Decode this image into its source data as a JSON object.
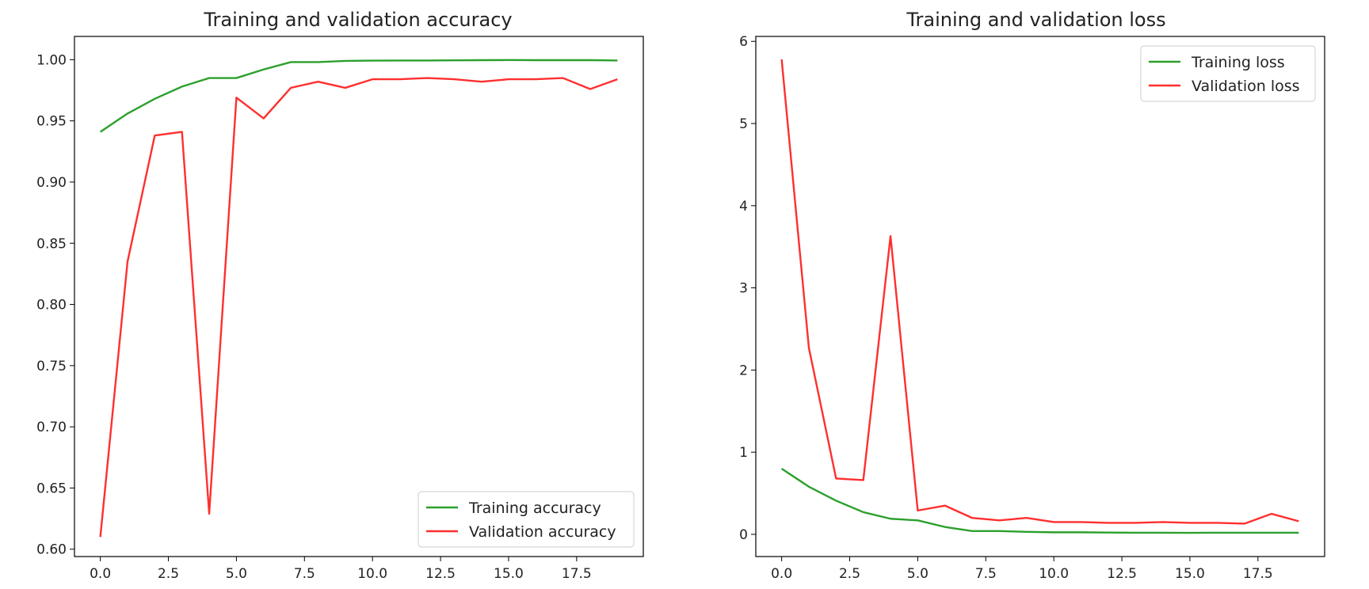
{
  "chart_data": [
    {
      "type": "line",
      "title": "Training and validation accuracy",
      "xlabel": "",
      "ylabel": "",
      "xlim": [
        -0.95,
        19.95
      ],
      "ylim": [
        0.594,
        1.019
      ],
      "xticks": [
        0.0,
        2.5,
        5.0,
        7.5,
        10.0,
        12.5,
        15.0,
        17.5
      ],
      "xtick_labels": [
        "0.0",
        "2.5",
        "5.0",
        "7.5",
        "10.0",
        "12.5",
        "15.0",
        "17.5"
      ],
      "yticks": [
        0.6,
        0.65,
        0.7,
        0.75,
        0.8,
        0.85,
        0.9,
        0.95,
        1.0
      ],
      "ytick_labels": [
        "0.60",
        "0.65",
        "0.70",
        "0.75",
        "0.80",
        "0.85",
        "0.90",
        "0.95",
        "1.00"
      ],
      "grid": false,
      "legend_position": "bottom-right",
      "x": [
        0,
        1,
        2,
        3,
        4,
        5,
        6,
        7,
        8,
        9,
        10,
        11,
        12,
        13,
        14,
        15,
        16,
        17,
        18,
        19
      ],
      "series": [
        {
          "name": "Training accuracy",
          "color": "#2ca02c",
          "values": [
            0.941,
            0.956,
            0.968,
            0.978,
            0.985,
            0.985,
            0.992,
            0.998,
            0.998,
            0.999,
            0.9992,
            0.9993,
            0.9993,
            0.9995,
            0.9996,
            0.9997,
            0.9996,
            0.9996,
            0.9996,
            0.9993
          ]
        },
        {
          "name": "Validation accuracy",
          "color": "#ff2f2f",
          "values": [
            0.61,
            0.835,
            0.938,
            0.941,
            0.629,
            0.969,
            0.952,
            0.977,
            0.982,
            0.977,
            0.984,
            0.984,
            0.985,
            0.984,
            0.982,
            0.984,
            0.984,
            0.985,
            0.976,
            0.984
          ]
        }
      ]
    },
    {
      "type": "line",
      "title": "Training and validation loss",
      "xlabel": "",
      "ylabel": "",
      "xlim": [
        -0.95,
        19.95
      ],
      "ylim": [
        -0.27,
        6.06
      ],
      "xticks": [
        0.0,
        2.5,
        5.0,
        7.5,
        10.0,
        12.5,
        15.0,
        17.5
      ],
      "xtick_labels": [
        "0.0",
        "2.5",
        "5.0",
        "7.5",
        "10.0",
        "12.5",
        "15.0",
        "17.5"
      ],
      "yticks": [
        0,
        1,
        2,
        3,
        4,
        5,
        6
      ],
      "ytick_labels": [
        "0",
        "1",
        "2",
        "3",
        "4",
        "5",
        "6"
      ],
      "grid": false,
      "legend_position": "top-right",
      "x": [
        0,
        1,
        2,
        3,
        4,
        5,
        6,
        7,
        8,
        9,
        10,
        11,
        12,
        13,
        14,
        15,
        16,
        17,
        18,
        19
      ],
      "series": [
        {
          "name": "Training loss",
          "color": "#2ca02c",
          "values": [
            0.8,
            0.58,
            0.41,
            0.27,
            0.19,
            0.17,
            0.09,
            0.04,
            0.04,
            0.03,
            0.025,
            0.025,
            0.022,
            0.02,
            0.02,
            0.018,
            0.02,
            0.02,
            0.02,
            0.02
          ]
        },
        {
          "name": "Validation loss",
          "color": "#ff2f2f",
          "values": [
            5.78,
            2.27,
            0.68,
            0.66,
            3.63,
            0.29,
            0.35,
            0.2,
            0.17,
            0.2,
            0.15,
            0.15,
            0.14,
            0.14,
            0.15,
            0.14,
            0.14,
            0.13,
            0.25,
            0.16
          ]
        }
      ]
    }
  ]
}
